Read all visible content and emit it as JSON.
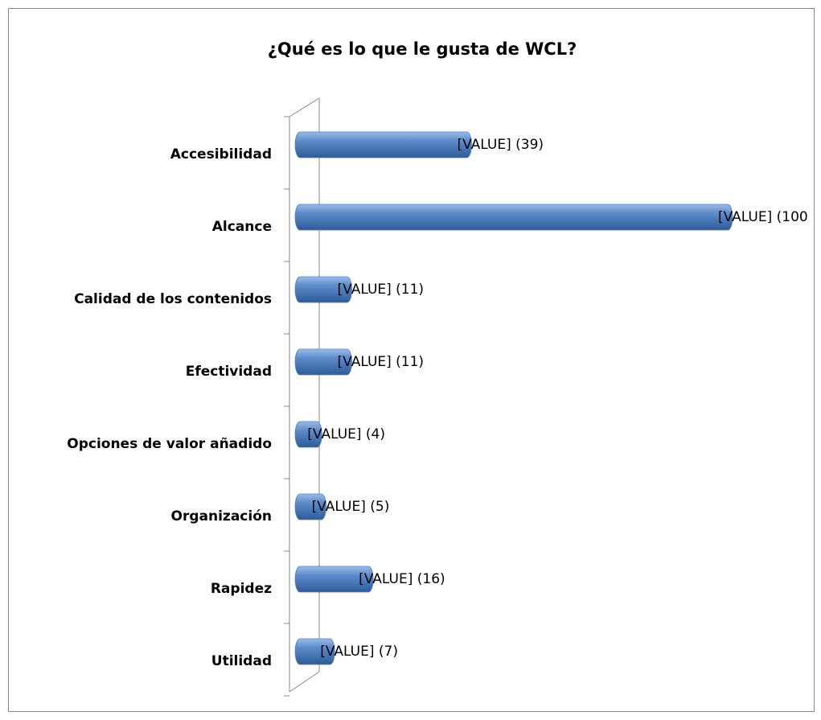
{
  "chart_data": {
    "type": "bar",
    "orientation": "horizontal",
    "title": "¿Qué es lo que le gusta de WCL?",
    "categories": [
      "Accesibilidad",
      "Alcance",
      "Calidad de los contenidos",
      "Efectividad",
      "Opciones de valor añadido",
      "Organización",
      "Rapidez",
      "Utilidad"
    ],
    "values": [
      39,
      100,
      11,
      11,
      4,
      5,
      16,
      7
    ],
    "value_labels": [
      "[VALUE] (39)",
      "[VALUE] (100",
      "[VALUE] (11)",
      "[VALUE] (11)",
      "[VALUE] (4)",
      "[VALUE] (5)",
      "[VALUE] (16)",
      "[VALUE] (7)"
    ],
    "color": "#4f81bd",
    "xlim": [
      0,
      100
    ]
  }
}
